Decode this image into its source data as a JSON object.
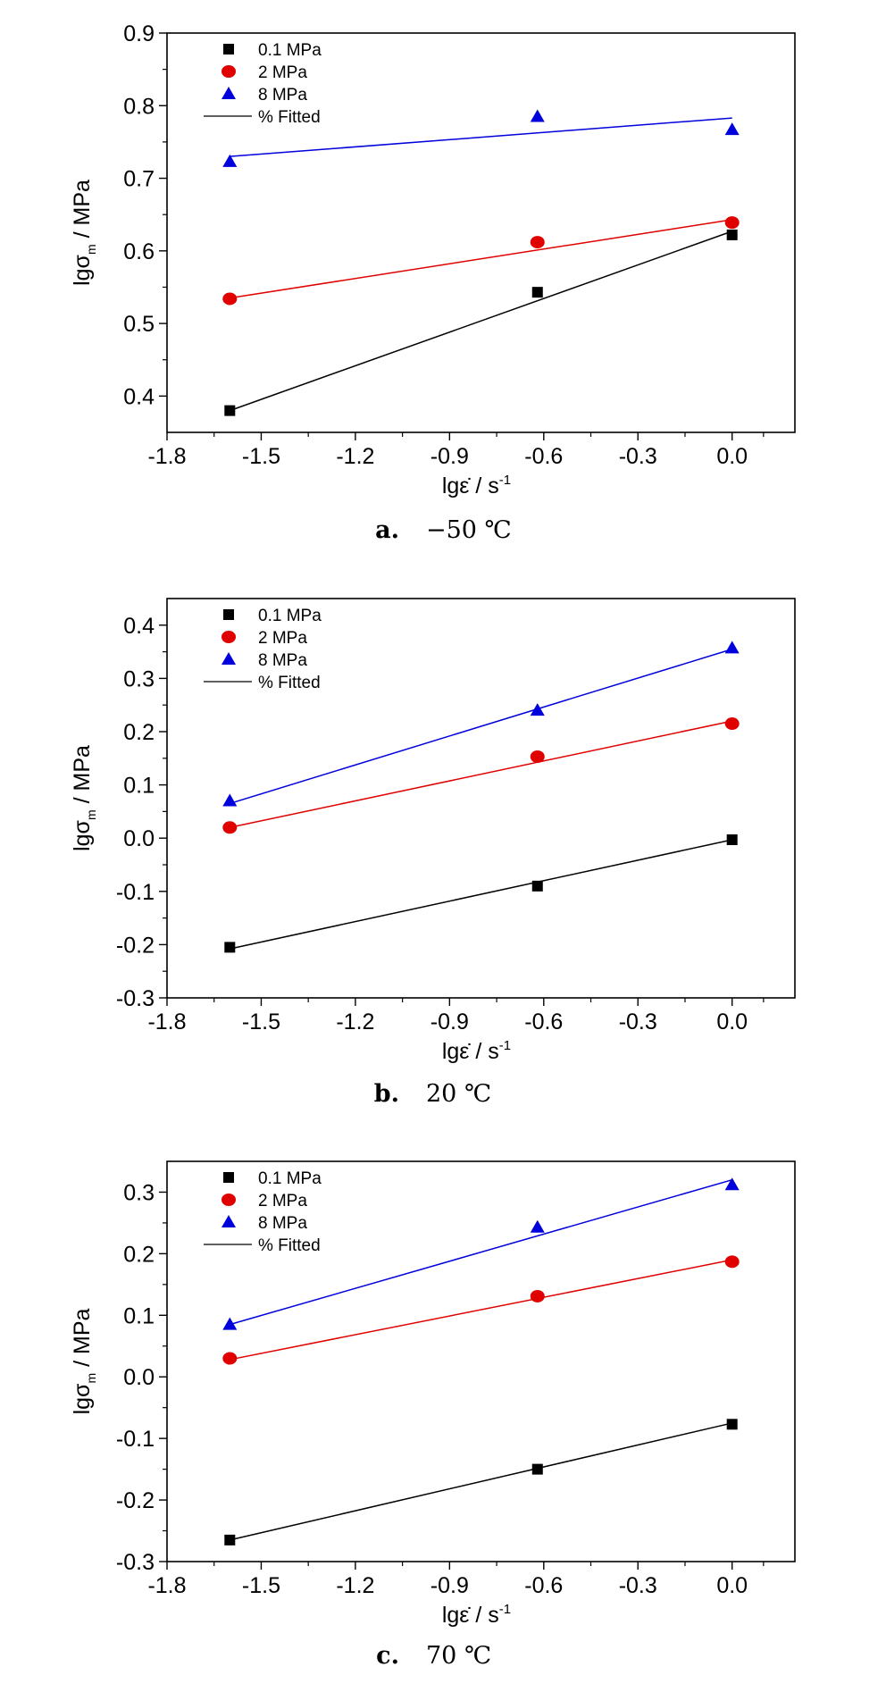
{
  "legend_fitted_label": "% Fitted",
  "chart_data": [
    {
      "type": "scatter",
      "caption_letter": "a.",
      "caption_text": "−50 ℃",
      "xlabel_main": "lgε̇ / s",
      "xlabel_sup": "-1",
      "ylabel_main": "lgσ",
      "ylabel_sub": "m",
      "ylabel_unit": " / MPa",
      "xlim": [
        -1.8,
        0.2
      ],
      "ylim": [
        0.35,
        0.9
      ],
      "xticks": [
        -1.8,
        -1.5,
        -1.2,
        -0.9,
        -0.6,
        -0.3,
        0.0
      ],
      "xtick_labels": [
        "-1.8",
        "-1.5",
        "-1.2",
        "-0.9",
        "-0.6",
        "-0.3",
        "0.0"
      ],
      "yticks": [
        0.4,
        0.5,
        0.6,
        0.7,
        0.8,
        0.9
      ],
      "ytick_labels": [
        "0.4",
        "0.5",
        "0.6",
        "0.7",
        "0.8",
        "0.9"
      ],
      "legend_position": "top-left",
      "series": [
        {
          "name": "0.1 MPa",
          "color": "#000000",
          "marker": "square",
          "x": [
            -1.6,
            -0.62,
            0.0
          ],
          "y": [
            0.38,
            0.543,
            0.622
          ],
          "fit": [
            [
              -1.6,
              0.38
            ],
            [
              0.0,
              0.627
            ]
          ]
        },
        {
          "name": "2 MPa",
          "color": "#e00000",
          "marker": "circle",
          "x": [
            -1.6,
            -0.62,
            0.0
          ],
          "y": [
            0.534,
            0.612,
            0.639
          ],
          "fit": [
            [
              -1.6,
              0.535
            ],
            [
              0.0,
              0.643
            ]
          ]
        },
        {
          "name": "8 MPa",
          "color": "#0000dd",
          "marker": "triangle",
          "x": [
            -1.6,
            -0.62,
            0.0
          ],
          "y": [
            0.723,
            0.785,
            0.767
          ],
          "fit": [
            [
              -1.6,
              0.73
            ],
            [
              0.0,
              0.783
            ]
          ]
        }
      ]
    },
    {
      "type": "scatter",
      "caption_letter": "b.",
      "caption_text": "20 ℃",
      "xlabel_main": "lgε̇ / s",
      "xlabel_sup": "-1",
      "ylabel_main": "lgσ",
      "ylabel_sub": "m",
      "ylabel_unit": " / MPa",
      "xlim": [
        -1.8,
        0.2
      ],
      "ylim": [
        -0.3,
        0.45
      ],
      "xticks": [
        -1.8,
        -1.5,
        -1.2,
        -0.9,
        -0.6,
        -0.3,
        0.0
      ],
      "xtick_labels": [
        "-1.8",
        "-1.5",
        "-1.2",
        "-0.9",
        "-0.6",
        "-0.3",
        "0.0"
      ],
      "yticks": [
        -0.3,
        -0.2,
        -0.1,
        0.0,
        0.1,
        0.2,
        0.3,
        0.4
      ],
      "ytick_labels": [
        "-0.3",
        "-0.2",
        "-0.1",
        "0.0",
        "0.1",
        "0.2",
        "0.3",
        "0.4"
      ],
      "legend_position": "top-left",
      "series": [
        {
          "name": "0.1 MPa",
          "color": "#000000",
          "marker": "square",
          "x": [
            -1.6,
            -0.62,
            0.0
          ],
          "y": [
            -0.205,
            -0.09,
            -0.003
          ],
          "fit": [
            [
              -1.6,
              -0.208
            ],
            [
              0.0,
              -0.003
            ]
          ]
        },
        {
          "name": "2 MPa",
          "color": "#e00000",
          "marker": "circle",
          "x": [
            -1.6,
            -0.62,
            0.0
          ],
          "y": [
            0.02,
            0.153,
            0.215
          ],
          "fit": [
            [
              -1.6,
              0.02
            ],
            [
              0.0,
              0.22
            ]
          ]
        },
        {
          "name": "8 MPa",
          "color": "#0000dd",
          "marker": "triangle",
          "x": [
            -1.6,
            -0.62,
            0.0
          ],
          "y": [
            0.07,
            0.24,
            0.357
          ],
          "fit": [
            [
              -1.6,
              0.065
            ],
            [
              0.0,
              0.355
            ]
          ]
        }
      ]
    },
    {
      "type": "scatter",
      "caption_letter": "c.",
      "caption_text": "70 ℃",
      "xlabel_main": "lgε̇ / s",
      "xlabel_sup": "-1",
      "ylabel_main": "lgσ",
      "ylabel_sub": "m",
      "ylabel_unit": " / MPa",
      "xlim": [
        -1.8,
        0.2
      ],
      "ylim": [
        -0.3,
        0.35
      ],
      "xticks": [
        -1.8,
        -1.5,
        -1.2,
        -0.9,
        -0.6,
        -0.3,
        0.0
      ],
      "xtick_labels": [
        "-1.8",
        "-1.5",
        "-1.2",
        "-0.9",
        "-0.6",
        "-0.3",
        "0.0"
      ],
      "yticks": [
        -0.3,
        -0.2,
        -0.1,
        0.0,
        0.1,
        0.2,
        0.3
      ],
      "ytick_labels": [
        "-0.3",
        "-0.2",
        "-0.1",
        "0.0",
        "0.1",
        "0.2",
        "0.3"
      ],
      "legend_position": "top-left",
      "series": [
        {
          "name": "0.1 MPa",
          "color": "#000000",
          "marker": "square",
          "x": [
            -1.6,
            -0.62,
            0.0
          ],
          "y": [
            -0.265,
            -0.15,
            -0.077
          ],
          "fit": [
            [
              -1.6,
              -0.265
            ],
            [
              0.0,
              -0.075
            ]
          ]
        },
        {
          "name": "2 MPa",
          "color": "#e00000",
          "marker": "circle",
          "x": [
            -1.6,
            -0.62,
            0.0
          ],
          "y": [
            0.03,
            0.131,
            0.187
          ],
          "fit": [
            [
              -1.6,
              0.028
            ],
            [
              0.0,
              0.19
            ]
          ]
        },
        {
          "name": "8 MPa",
          "color": "#0000dd",
          "marker": "triangle",
          "x": [
            -1.6,
            -0.62,
            0.0
          ],
          "y": [
            0.085,
            0.243,
            0.312
          ],
          "fit": [
            [
              -1.6,
              0.085
            ],
            [
              0.0,
              0.32
            ]
          ]
        }
      ]
    }
  ]
}
